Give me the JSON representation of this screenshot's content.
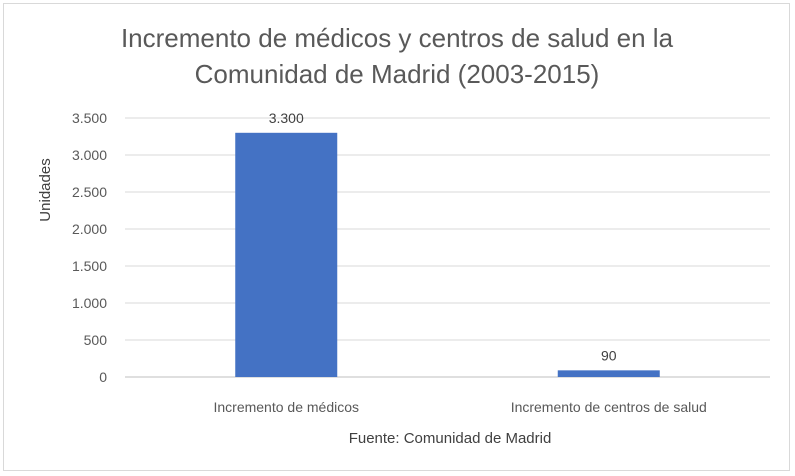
{
  "chart_data": {
    "type": "bar",
    "title_lines": [
      "Incremento de médicos y centros de salud en la",
      "Comunidad de Madrid (2003-2015)"
    ],
    "categories": [
      "Incremento de médicos",
      "Incremento de centros de salud"
    ],
    "values": [
      3300,
      90
    ],
    "value_labels": [
      "3.300",
      "90"
    ],
    "ylabel": "Unidades",
    "xlabel": "Fuente: Comunidad de Madrid",
    "ylim": [
      0,
      3500
    ],
    "yticks": [
      0,
      500,
      1000,
      1500,
      2000,
      2500,
      3000,
      3500
    ],
    "ytick_labels": [
      "0",
      "500",
      "1.000",
      "1.500",
      "2.000",
      "2.500",
      "3.000",
      "3.500"
    ],
    "grid": true,
    "bar_color": "#4472c4"
  }
}
